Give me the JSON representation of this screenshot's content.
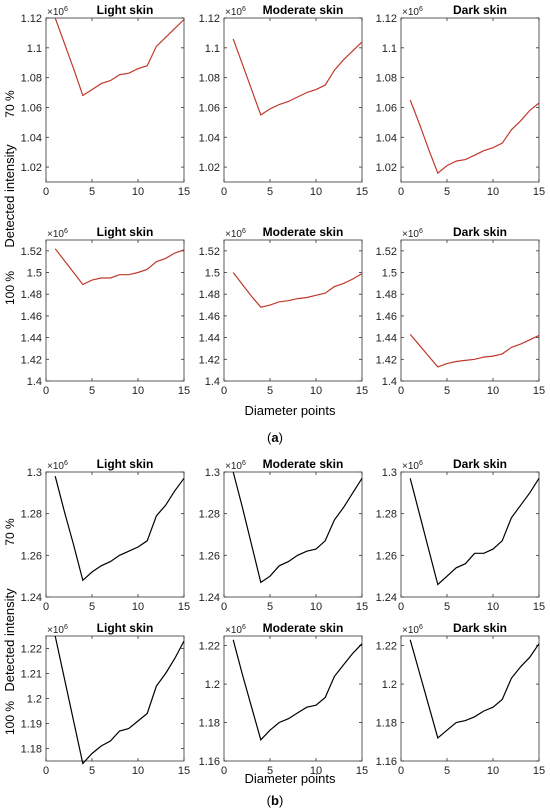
{
  "figure": {
    "y_axis_label": "Detected intensity",
    "x_axis_label": "Diameter points",
    "row_labels": [
      "70 %",
      "100 %"
    ],
    "column_titles": [
      "Light skin",
      "Moderate skin",
      "Dark skin"
    ],
    "exponent_label": "×10",
    "exponent_power": "6",
    "panel_a_caption": {
      "open": "(",
      "letter": "a",
      "close": ")"
    },
    "panel_b_caption": {
      "open": "(",
      "letter": "b",
      "close": ")"
    }
  },
  "chart_data": [
    {
      "type": "line",
      "panel": "a",
      "row": "70 %",
      "title": "Light skin",
      "color": "#c0392b",
      "x": [
        1,
        2,
        3,
        4,
        5,
        6,
        7,
        8,
        9,
        10,
        11,
        12,
        13,
        14,
        15
      ],
      "y": [
        1.12,
        1.103,
        1.086,
        1.068,
        1.072,
        1.076,
        1.078,
        1.082,
        1.083,
        1.086,
        1.088,
        1.101,
        1.107,
        1.113,
        1.119
      ],
      "xlim": [
        0,
        15
      ],
      "ylim": [
        1.01,
        1.12
      ],
      "yticks": [
        1.02,
        1.04,
        1.06,
        1.08,
        1.1,
        1.12
      ],
      "ytick_labels": [
        "1.02",
        "1.04",
        "1.06",
        "1.08",
        "1.1",
        "1.12"
      ],
      "xticks": [
        0,
        5,
        10,
        15
      ],
      "xtick_labels": [
        "0",
        "5",
        "10",
        "15"
      ],
      "y_scale": "×10^6"
    },
    {
      "type": "line",
      "panel": "a",
      "row": "70 %",
      "title": "Moderate skin",
      "color": "#c0392b",
      "x": [
        1,
        2,
        3,
        4,
        5,
        6,
        7,
        8,
        9,
        10,
        11,
        12,
        13,
        14,
        15
      ],
      "y": [
        1.106,
        1.089,
        1.072,
        1.055,
        1.059,
        1.062,
        1.064,
        1.067,
        1.07,
        1.072,
        1.075,
        1.085,
        1.092,
        1.098,
        1.104
      ],
      "xlim": [
        0,
        15
      ],
      "ylim": [
        1.01,
        1.12
      ],
      "yticks": [
        1.02,
        1.04,
        1.06,
        1.08,
        1.1,
        1.12
      ],
      "ytick_labels": [
        "1.02",
        "1.04",
        "1.06",
        "1.08",
        "1.1",
        "1.12"
      ],
      "xticks": [
        0,
        5,
        10,
        15
      ],
      "xtick_labels": [
        "0",
        "5",
        "10",
        "15"
      ],
      "y_scale": "×10^6"
    },
    {
      "type": "line",
      "panel": "a",
      "row": "70 %",
      "title": "Dark skin",
      "color": "#c0392b",
      "x": [
        1,
        2,
        3,
        4,
        5,
        6,
        7,
        8,
        9,
        10,
        11,
        12,
        13,
        14,
        15
      ],
      "y": [
        1.065,
        1.049,
        1.032,
        1.016,
        1.021,
        1.024,
        1.025,
        1.028,
        1.031,
        1.033,
        1.036,
        1.045,
        1.051,
        1.058,
        1.063
      ],
      "xlim": [
        0,
        15
      ],
      "ylim": [
        1.01,
        1.12
      ],
      "yticks": [
        1.02,
        1.04,
        1.06,
        1.08,
        1.1,
        1.12
      ],
      "ytick_labels": [
        "1.02",
        "1.04",
        "1.06",
        "1.08",
        "1.1",
        "1.12"
      ],
      "xticks": [
        0,
        5,
        10,
        15
      ],
      "xtick_labels": [
        "0",
        "5",
        "10",
        "15"
      ],
      "y_scale": "×10^6"
    },
    {
      "type": "line",
      "panel": "a",
      "row": "100 %",
      "title": "Light skin",
      "color": "#c0392b",
      "x": [
        1,
        2,
        3,
        4,
        5,
        6,
        7,
        8,
        9,
        10,
        11,
        12,
        13,
        14,
        15
      ],
      "y": [
        1.522,
        1.511,
        1.5,
        1.489,
        1.493,
        1.495,
        1.495,
        1.498,
        1.498,
        1.5,
        1.503,
        1.51,
        1.513,
        1.518,
        1.521
      ],
      "xlim": [
        0,
        15
      ],
      "ylim": [
        1.4,
        1.53
      ],
      "yticks": [
        1.4,
        1.42,
        1.44,
        1.46,
        1.48,
        1.5,
        1.52
      ],
      "ytick_labels": [
        "1.4",
        "1.42",
        "1.44",
        "1.46",
        "1.48",
        "1.5",
        "1.52"
      ],
      "xticks": [
        0,
        5,
        10,
        15
      ],
      "xtick_labels": [
        "0",
        "5",
        "10",
        "15"
      ],
      "y_scale": "×10^6"
    },
    {
      "type": "line",
      "panel": "a",
      "row": "100 %",
      "title": "Moderate skin",
      "color": "#c0392b",
      "x": [
        1,
        2,
        3,
        4,
        5,
        6,
        7,
        8,
        9,
        10,
        11,
        12,
        13,
        14,
        15
      ],
      "y": [
        1.5,
        1.489,
        1.478,
        1.468,
        1.47,
        1.473,
        1.474,
        1.476,
        1.477,
        1.479,
        1.481,
        1.487,
        1.49,
        1.494,
        1.499
      ],
      "xlim": [
        0,
        15
      ],
      "ylim": [
        1.4,
        1.53
      ],
      "yticks": [
        1.4,
        1.42,
        1.44,
        1.46,
        1.48,
        1.5,
        1.52
      ],
      "ytick_labels": [
        "1.4",
        "1.42",
        "1.44",
        "1.46",
        "1.48",
        "1.5",
        "1.52"
      ],
      "xticks": [
        0,
        5,
        10,
        15
      ],
      "xtick_labels": [
        "0",
        "5",
        "10",
        "15"
      ],
      "y_scale": "×10^6"
    },
    {
      "type": "line",
      "panel": "a",
      "row": "100 %",
      "title": "Dark skin",
      "color": "#c0392b",
      "x": [
        1,
        2,
        3,
        4,
        5,
        6,
        7,
        8,
        9,
        10,
        11,
        12,
        13,
        14,
        15
      ],
      "y": [
        1.443,
        1.433,
        1.423,
        1.413,
        1.416,
        1.418,
        1.419,
        1.42,
        1.422,
        1.423,
        1.425,
        1.431,
        1.434,
        1.438,
        1.442
      ],
      "xlim": [
        0,
        15
      ],
      "ylim": [
        1.4,
        1.53
      ],
      "yticks": [
        1.4,
        1.42,
        1.44,
        1.46,
        1.48,
        1.5,
        1.52
      ],
      "ytick_labels": [
        "1.4",
        "1.42",
        "1.44",
        "1.46",
        "1.48",
        "1.5",
        "1.52"
      ],
      "xticks": [
        0,
        5,
        10,
        15
      ],
      "xtick_labels": [
        "0",
        "5",
        "10",
        "15"
      ],
      "y_scale": "×10^6"
    },
    {
      "type": "line",
      "panel": "b",
      "row": "70 %",
      "title": "Light skin",
      "color": "#000000",
      "x": [
        1,
        2,
        3,
        4,
        5,
        6,
        7,
        8,
        9,
        10,
        11,
        12,
        13,
        14,
        15
      ],
      "y": [
        1.298,
        1.281,
        1.265,
        1.248,
        1.252,
        1.255,
        1.257,
        1.26,
        1.262,
        1.264,
        1.267,
        1.279,
        1.284,
        1.291,
        1.297
      ],
      "xlim": [
        0,
        15
      ],
      "ylim": [
        1.24,
        1.3
      ],
      "yticks": [
        1.24,
        1.26,
        1.28,
        1.3
      ],
      "ytick_labels": [
        "1.24",
        "1.26",
        "1.28",
        "1.3"
      ],
      "xticks": [
        0,
        5,
        10,
        15
      ],
      "xtick_labels": [
        "0",
        "5",
        "10",
        "15"
      ],
      "y_scale": "×10^6"
    },
    {
      "type": "line",
      "panel": "b",
      "row": "70 %",
      "title": "Moderate skin",
      "color": "#000000",
      "x": [
        1,
        2,
        3,
        4,
        5,
        6,
        7,
        8,
        9,
        10,
        11,
        12,
        13,
        14,
        15
      ],
      "y": [
        1.3,
        1.283,
        1.265,
        1.247,
        1.25,
        1.255,
        1.257,
        1.26,
        1.262,
        1.263,
        1.267,
        1.277,
        1.283,
        1.29,
        1.297
      ],
      "xlim": [
        0,
        15
      ],
      "ylim": [
        1.24,
        1.3
      ],
      "yticks": [
        1.24,
        1.26,
        1.28,
        1.3
      ],
      "ytick_labels": [
        "1.24",
        "1.26",
        "1.28",
        "1.3"
      ],
      "xticks": [
        0,
        5,
        10,
        15
      ],
      "xtick_labels": [
        "0",
        "5",
        "10",
        "15"
      ],
      "y_scale": "×10^6"
    },
    {
      "type": "line",
      "panel": "b",
      "row": "70 %",
      "title": "Dark skin",
      "color": "#000000",
      "x": [
        1,
        2,
        3,
        4,
        5,
        6,
        7,
        8,
        9,
        10,
        11,
        12,
        13,
        14,
        15
      ],
      "y": [
        1.297,
        1.28,
        1.263,
        1.246,
        1.25,
        1.254,
        1.256,
        1.261,
        1.261,
        1.263,
        1.267,
        1.278,
        1.284,
        1.29,
        1.297
      ],
      "xlim": [
        0,
        15
      ],
      "ylim": [
        1.24,
        1.3
      ],
      "yticks": [
        1.24,
        1.26,
        1.28,
        1.3
      ],
      "ytick_labels": [
        "1.24",
        "1.26",
        "1.28",
        "1.3"
      ],
      "xticks": [
        0,
        5,
        10,
        15
      ],
      "xtick_labels": [
        "0",
        "5",
        "10",
        "15"
      ],
      "y_scale": "×10^6"
    },
    {
      "type": "line",
      "panel": "b",
      "row": "100 %",
      "title": "Light skin",
      "color": "#000000",
      "x": [
        1,
        2,
        3,
        4,
        5,
        6,
        7,
        8,
        9,
        10,
        11,
        12,
        13,
        14,
        15
      ],
      "y": [
        1.225,
        1.208,
        1.191,
        1.174,
        1.178,
        1.181,
        1.183,
        1.187,
        1.188,
        1.191,
        1.194,
        1.205,
        1.21,
        1.216,
        1.223
      ],
      "xlim": [
        0,
        15
      ],
      "ylim": [
        1.175,
        1.225
      ],
      "yticks": [
        1.18,
        1.19,
        1.2,
        1.21,
        1.22
      ],
      "ytick_labels": [
        "1.18",
        "1.19",
        "1.2",
        "1.21",
        "1.22"
      ],
      "xticks": [
        0,
        5,
        10,
        15
      ],
      "xtick_labels": [
        "0",
        "5",
        "10",
        "15"
      ],
      "y_scale": "×10^6"
    },
    {
      "type": "line",
      "panel": "b",
      "row": "100 %",
      "title": "Moderate skin",
      "color": "#000000",
      "x": [
        1,
        2,
        3,
        4,
        5,
        6,
        7,
        8,
        9,
        10,
        11,
        12,
        13,
        14,
        15
      ],
      "y": [
        1.223,
        1.205,
        1.188,
        1.171,
        1.176,
        1.18,
        1.182,
        1.185,
        1.188,
        1.189,
        1.193,
        1.204,
        1.21,
        1.216,
        1.221
      ],
      "xlim": [
        0,
        15
      ],
      "ylim": [
        1.16,
        1.225
      ],
      "yticks": [
        1.16,
        1.18,
        1.2,
        1.22
      ],
      "ytick_labels": [
        "1.16",
        "1.18",
        "1.2",
        "1.22"
      ],
      "xticks": [
        0,
        5,
        10,
        15
      ],
      "xtick_labels": [
        "0",
        "5",
        "10",
        "15"
      ],
      "y_scale": "×10^6"
    },
    {
      "type": "line",
      "panel": "b",
      "row": "100 %",
      "title": "Dark skin",
      "color": "#000000",
      "x": [
        1,
        2,
        3,
        4,
        5,
        6,
        7,
        8,
        9,
        10,
        11,
        12,
        13,
        14,
        15
      ],
      "y": [
        1.223,
        1.206,
        1.189,
        1.172,
        1.176,
        1.18,
        1.181,
        1.183,
        1.186,
        1.188,
        1.192,
        1.203,
        1.209,
        1.214,
        1.221
      ],
      "xlim": [
        0,
        15
      ],
      "ylim": [
        1.16,
        1.225
      ],
      "yticks": [
        1.16,
        1.18,
        1.2,
        1.22
      ],
      "ytick_labels": [
        "1.16",
        "1.18",
        "1.2",
        "1.22"
      ],
      "xticks": [
        0,
        5,
        10,
        15
      ],
      "xtick_labels": [
        "0",
        "5",
        "10",
        "15"
      ],
      "y_scale": "×10^6"
    }
  ]
}
